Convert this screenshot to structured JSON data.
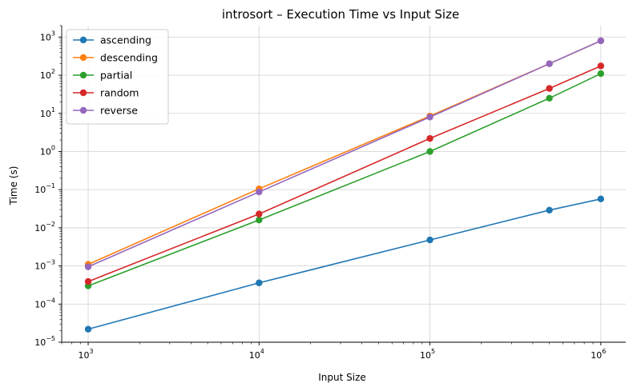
{
  "chart_data": {
    "type": "line",
    "title": "introsort – Execution Time vs Input Size",
    "xlabel": "Input Size",
    "ylabel": "Time (s)",
    "xscale": "log",
    "yscale": "log",
    "xlim": [
      700,
      1400000
    ],
    "ylim": [
      1e-05,
      2000
    ],
    "x_tick_labels": [
      {
        "base": "10",
        "exp": "3",
        "value": 1000
      },
      {
        "base": "10",
        "exp": "4",
        "value": 10000
      },
      {
        "base": "10",
        "exp": "5",
        "value": 100000
      },
      {
        "base": "10",
        "exp": "6",
        "value": 1000000
      }
    ],
    "y_tick_labels": [
      {
        "base": "10",
        "exp": "−5",
        "value": 1e-05
      },
      {
        "base": "10",
        "exp": "−4",
        "value": 0.0001
      },
      {
        "base": "10",
        "exp": "−3",
        "value": 0.001
      },
      {
        "base": "10",
        "exp": "−2",
        "value": 0.01
      },
      {
        "base": "10",
        "exp": "−1",
        "value": 0.1
      },
      {
        "base": "10",
        "exp": "0",
        "value": 1
      },
      {
        "base": "10",
        "exp": "1",
        "value": 10
      },
      {
        "base": "10",
        "exp": "2",
        "value": 100
      },
      {
        "base": "10",
        "exp": "3",
        "value": 1000
      }
    ],
    "x": [
      1000,
      10000,
      100000,
      500000,
      1000000
    ],
    "grid": true,
    "legend_position": "top-left",
    "series": [
      {
        "name": "ascending",
        "color": "#1f77b4",
        "values": [
          2.2e-05,
          0.00036,
          0.0048,
          0.029,
          0.057
        ]
      },
      {
        "name": "descending",
        "color": "#ff7f0e",
        "values": [
          0.0011,
          0.105,
          8.5,
          200,
          800
        ]
      },
      {
        "name": "partial",
        "color": "#2ca02c",
        "values": [
          0.0003,
          0.016,
          1.0,
          25,
          110
        ]
      },
      {
        "name": "random",
        "color": "#d62728",
        "values": [
          0.00039,
          0.023,
          2.2,
          45,
          175
        ]
      },
      {
        "name": "reverse",
        "color": "#9467bd",
        "values": [
          0.00095,
          0.087,
          8.0,
          200,
          800
        ]
      }
    ]
  }
}
